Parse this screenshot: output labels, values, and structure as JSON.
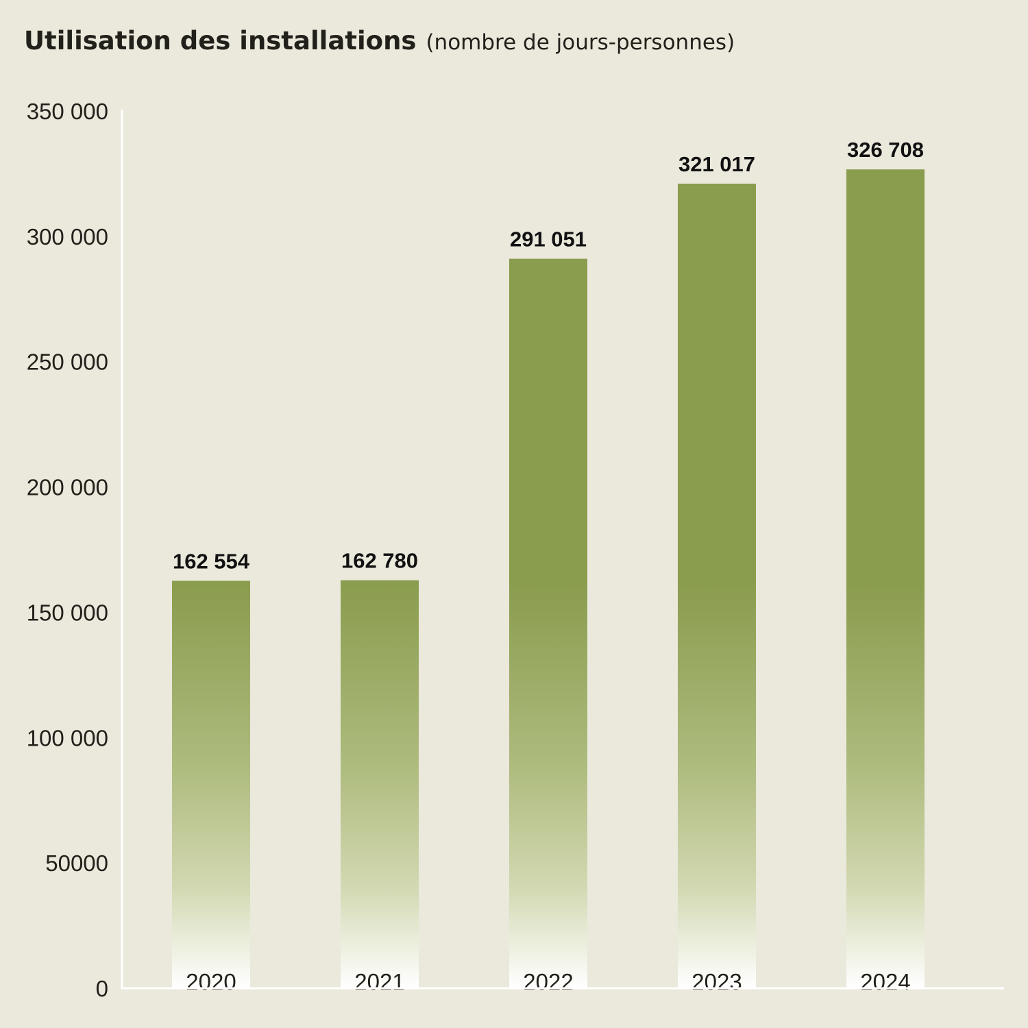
{
  "chart_data": {
    "type": "bar",
    "title": "Utilisation des installations",
    "subtitle": "(nombre de jours-personnes)",
    "categories": [
      "2020",
      "2021",
      "2022",
      "2023",
      "2024"
    ],
    "values": [
      162554,
      162780,
      291051,
      321017,
      326708
    ],
    "value_labels": [
      "162 554",
      "162 780",
      "291 051",
      "321 017",
      "326 708"
    ],
    "ylim": [
      0,
      350000
    ],
    "yticks": [
      0,
      50000,
      100000,
      150000,
      200000,
      250000,
      300000,
      350000
    ],
    "ytick_labels": [
      "0",
      "50000",
      "100 000",
      "150 000",
      "200 000",
      "250 000",
      "300 000",
      "350 000"
    ],
    "xlabel": "",
    "ylabel": "",
    "grid": false,
    "legend": "none",
    "colors": {
      "bar_top": "#8a9c4e",
      "bar_bottom": "#ffffff",
      "background": "#ebe8dc",
      "axis": "#ffffff"
    }
  }
}
